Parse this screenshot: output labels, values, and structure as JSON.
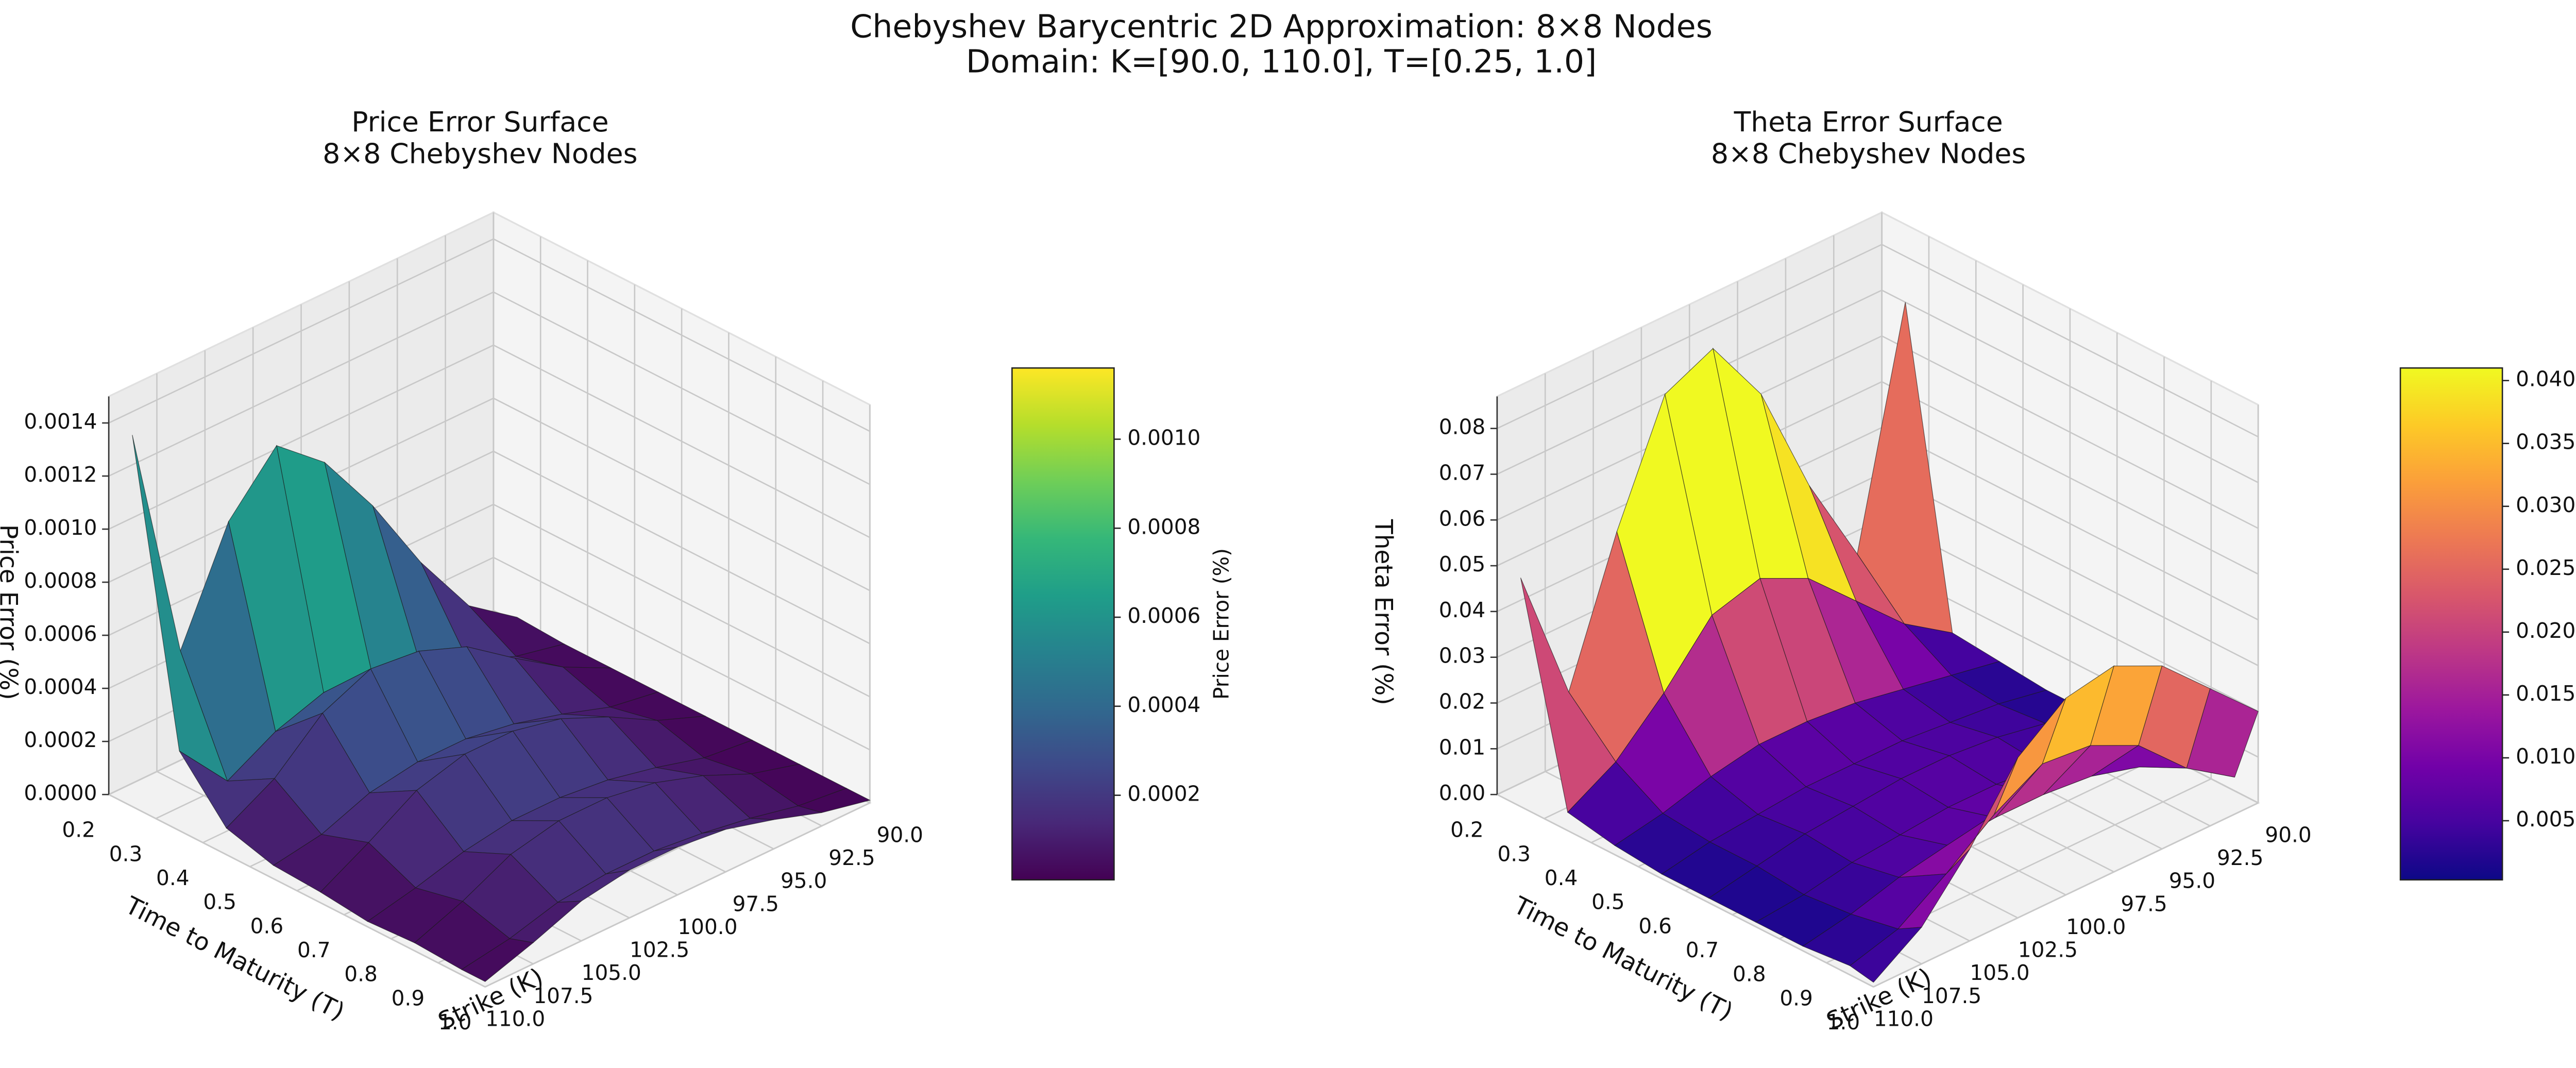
{
  "title": [
    "Chebyshev Barycentric 2D Approximation: 8×8 Nodes",
    "Domain: K=[90.0, 110.0], T=[0.25, 1.0]"
  ],
  "chart_data": [
    {
      "type": "surface",
      "title": [
        "Price Error Surface",
        "8×8 Chebyshev Nodes"
      ],
      "xlabel": "Strike (K)",
      "ylabel": "Time to Maturity (T)",
      "zlabel": "Price Error (%)",
      "colormap": "viridis",
      "x": [
        90,
        92.5,
        95,
        97.5,
        100,
        102.5,
        105,
        107.5,
        110
      ],
      "y": [
        0.25,
        0.35,
        0.45,
        0.55,
        0.65,
        0.75,
        0.85,
        0.95,
        1.0
      ],
      "z": [
        [
          2e-05,
          0.00015,
          0.0004,
          0.0007,
          0.00095,
          0.0011,
          0.0009,
          0.0005,
          0.0014
        ],
        [
          1e-05,
          5e-05,
          0.00012,
          0.0002,
          0.00025,
          0.00026,
          0.0002,
          0.0001,
          0.0003
        ],
        [
          1e-05,
          0.0001,
          0.00022,
          0.00035,
          0.00042,
          0.00044,
          0.00036,
          0.0002,
          0.0001
        ],
        [
          1e-05,
          4e-05,
          0.0001,
          0.00015,
          0.00018,
          0.00018,
          0.00015,
          8e-05,
          5e-05
        ],
        [
          1e-05,
          8e-05,
          0.00018,
          0.00026,
          0.0003,
          0.0003,
          0.00025,
          0.00014,
          4e-05
        ],
        [
          1e-05,
          3e-05,
          8e-05,
          0.00012,
          0.00014,
          0.00014,
          0.00011,
          6e-05,
          2e-05
        ],
        [
          1e-05,
          6e-05,
          0.00014,
          0.0002,
          0.00023,
          0.00023,
          0.00019,
          0.0001,
          3e-05
        ],
        [
          1e-05,
          3e-05,
          7e-05,
          0.0001,
          0.00012,
          0.00012,
          0.0001,
          5e-05,
          2e-05
        ],
        [
          1e-05,
          5e-05,
          0.00011,
          0.00016,
          0.00018,
          0.00018,
          0.00015,
          8e-05,
          2e-05
        ]
      ],
      "xlim": [
        90,
        110
      ],
      "xticks": [
        {
          "value": 90,
          "label": "90.0"
        },
        92.5,
        {
          "value": 95,
          "label": "95.0"
        },
        97.5,
        {
          "value": 100,
          "label": "100.0"
        },
        102.5,
        {
          "value": 105,
          "label": "105.0"
        },
        107.5,
        {
          "value": 110,
          "label": "110.0"
        }
      ],
      "ylim": [
        0.2,
        1.0
      ],
      "yticks": [
        0.2,
        0.3,
        0.4,
        0.5,
        0.6,
        0.7,
        0.8,
        0.9,
        {
          "value": 1,
          "label": "1.0"
        }
      ],
      "zlim": [
        0,
        0.0015
      ],
      "zticks": [
        {
          "value": 0,
          "label": "0.0000"
        },
        {
          "value": 0.0002,
          "label": "0.0002"
        },
        {
          "value": 0.0004,
          "label": "0.0004"
        },
        {
          "value": 0.0006,
          "label": "0.0006"
        },
        {
          "value": 0.0008,
          "label": "0.0008"
        },
        {
          "value": 0.001,
          "label": "0.0010"
        },
        {
          "value": 0.0012,
          "label": "0.0012"
        },
        {
          "value": 0.0014,
          "label": "0.0014"
        }
      ],
      "colorbar": {
        "label": "Price Error (%)",
        "clim": [
          1e-05,
          0.00116
        ],
        "ticks": [
          {
            "value": 0.0002,
            "label": "0.0002"
          },
          {
            "value": 0.0004,
            "label": "0.0004"
          },
          {
            "value": 0.0006,
            "label": "0.0006"
          },
          {
            "value": 0.0008,
            "label": "0.0008"
          },
          {
            "value": 0.001,
            "label": "0.0010"
          }
        ]
      }
    },
    {
      "type": "surface",
      "title": [
        "Theta Error Surface",
        "8×8 Chebyshev Nodes"
      ],
      "xlabel": "Strike (K)",
      "ylabel": "Time to Maturity (T)",
      "zlabel": "Theta Error (%)",
      "colormap": "plasma",
      "x": [
        90,
        92.5,
        95,
        97.5,
        100,
        102.5,
        105,
        107.5,
        110
      ],
      "y": [
        0.25,
        0.35,
        0.45,
        0.55,
        0.65,
        0.75,
        0.85,
        0.95,
        1.0
      ],
      "z": [
        [
          0.07,
          0.02,
          0.04,
          0.065,
          0.08,
          0.075,
          0.05,
          0.02,
          0.05
        ],
        [
          0.003,
          0.01,
          0.02,
          0.03,
          0.035,
          0.032,
          0.02,
          0.01,
          0.004
        ],
        [
          0.002,
          0.004,
          0.006,
          0.008,
          0.009,
          0.009,
          0.007,
          0.004,
          0.002
        ],
        [
          0.001,
          0.003,
          0.004,
          0.005,
          0.005,
          0.005,
          0.004,
          0.003,
          0.001
        ],
        [
          0.001,
          0.004,
          0.006,
          0.007,
          0.007,
          0.006,
          0.005,
          0.003,
          0.001
        ],
        [
          0.001,
          0.003,
          0.005,
          0.006,
          0.006,
          0.005,
          0.004,
          0.002,
          0.001
        ],
        [
          0.002,
          0.005,
          0.008,
          0.009,
          0.009,
          0.008,
          0.006,
          0.003,
          0.001
        ],
        [
          0.003,
          0.01,
          0.02,
          0.025,
          0.026,
          0.02,
          0.012,
          0.005,
          0.002
        ],
        [
          0.02,
          0.03,
          0.04,
          0.045,
          0.043,
          0.035,
          0.02,
          0.008,
          0.001
        ]
      ],
      "xlim": [
        90,
        110
      ],
      "xticks": [
        {
          "value": 90,
          "label": "90.0"
        },
        92.5,
        {
          "value": 95,
          "label": "95.0"
        },
        97.5,
        {
          "value": 100,
          "label": "100.0"
        },
        102.5,
        {
          "value": 105,
          "label": "105.0"
        },
        107.5,
        {
          "value": 110,
          "label": "110.0"
        }
      ],
      "ylim": [
        0.2,
        1.0
      ],
      "yticks": [
        0.2,
        0.3,
        0.4,
        0.5,
        0.6,
        0.7,
        0.8,
        0.9,
        {
          "value": 1,
          "label": "1.0"
        }
      ],
      "zlim": [
        0,
        0.087
      ],
      "zticks": [
        {
          "value": 0,
          "label": "0.00"
        },
        0.01,
        0.02,
        0.03,
        0.04,
        0.05,
        0.06,
        0.07,
        0.08
      ],
      "colorbar": {
        "label": "Theta Error (%)",
        "clim": [
          0.0003,
          0.041
        ],
        "ticks": [
          0.005,
          {
            "value": 0.01,
            "label": "0.010"
          },
          0.015,
          {
            "value": 0.02,
            "label": "0.020"
          },
          0.025,
          {
            "value": 0.03,
            "label": "0.030"
          },
          0.035,
          {
            "value": 0.04,
            "label": "0.040"
          }
        ]
      }
    }
  ]
}
